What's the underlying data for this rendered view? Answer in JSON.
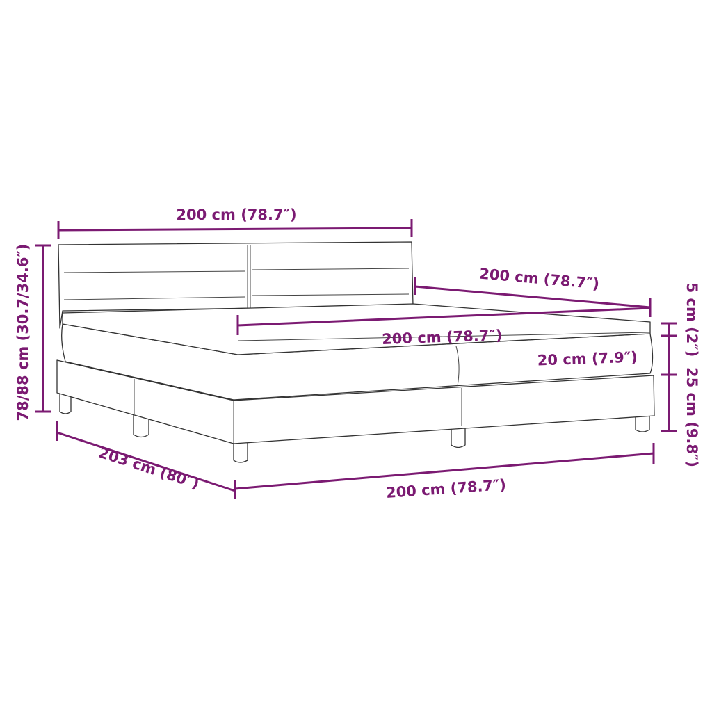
{
  "colors": {
    "dimension": "#7b1a72",
    "outline": "#333333"
  },
  "labels": {
    "headboard_width": "200 cm (78.7″)",
    "depth_top": "200 cm (78.7″)",
    "mattress_width": "200 cm (78.7″)",
    "mattress_thickness": "20 cm (7.9″)",
    "topper_thickness": "5 cm (2″)",
    "base_height": "25 cm (9.8″)",
    "total_height": "78/88 cm (30.7/34.6″)",
    "length": "203 cm (80″)",
    "bottom_width": "200 cm (78.7″)"
  }
}
